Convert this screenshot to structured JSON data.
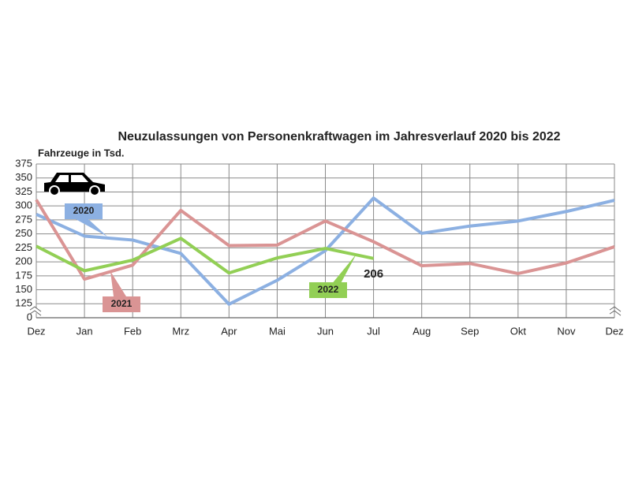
{
  "chart_data": {
    "type": "line",
    "title": "Neuzulassungen von Personenkraftwagen im Jahresverlauf 2020 bis 2022",
    "y_label": "Fahrzeuge in Tsd.",
    "categories": [
      "Dez",
      "Jan",
      "Feb",
      "Mrz",
      "Apr",
      "Mai",
      "Jun",
      "Jul",
      "Aug",
      "Sep",
      "Okt",
      "Nov",
      "Dez"
    ],
    "series": [
      {
        "name": "2020",
        "color": "#8cb0e2",
        "values": [
          285,
          246,
          239,
          215,
          121,
          167,
          220,
          314,
          251,
          264,
          273,
          290,
          310
        ]
      },
      {
        "name": "2021",
        "color": "#da9494",
        "values": [
          311,
          169,
          194,
          292,
          229,
          230,
          273,
          236,
          193,
          197,
          179,
          198,
          227
        ]
      },
      {
        "name": "2022",
        "color": "#92cf55",
        "values": [
          228,
          184,
          203,
          242,
          180,
          207,
          224,
          206,
          null,
          null,
          null,
          null,
          null
        ]
      }
    ],
    "ylim": [
      0,
      375
    ],
    "yticks": [
      0,
      125,
      150,
      175,
      200,
      225,
      250,
      275,
      300,
      325,
      350,
      375
    ],
    "axis_break": true,
    "grid": true
  }
}
